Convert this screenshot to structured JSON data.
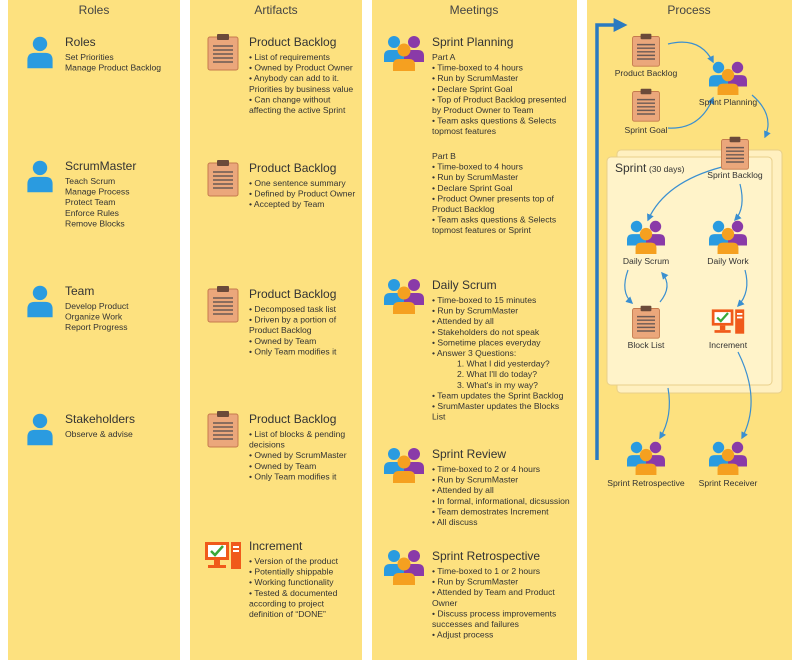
{
  "roles": {
    "heading": "Roles",
    "items": [
      {
        "title": "Roles",
        "lines": [
          "Set Priorities",
          "Manage Product Backlog"
        ]
      },
      {
        "title": "ScrumMaster",
        "lines": [
          "Teach Scrum",
          "Manage Process",
          "Protect Team",
          "Enforce Rules",
          "Remove Blocks"
        ]
      },
      {
        "title": "Team",
        "lines": [
          "Develop Product",
          "Organize Work",
          "Report Progress"
        ]
      },
      {
        "title": "Stakeholders",
        "lines": [
          "Observe & advise"
        ]
      }
    ]
  },
  "artifacts": {
    "heading": "Artifacts",
    "items": [
      {
        "title": "Product Backlog",
        "lines": [
          "• List of requirements",
          "• Owned by Product Owner",
          "• Anybody can add to it.",
          "Priorities by business value",
          "• Can change without",
          "affecting the active Sprint"
        ]
      },
      {
        "title": "Product Backlog",
        "lines": [
          "• One sentence summary",
          "• Defined by Product Owner",
          "• Accepted by Team"
        ]
      },
      {
        "title": "Product Backlog",
        "lines": [
          "• Decomposed task list",
          "• Driven by a portion of",
          "Product Backlog",
          "• Owned by Team",
          "• Only Team modifies it"
        ]
      },
      {
        "title": "Product Backlog",
        "lines": [
          "• List of blocks & pending",
          "decisions",
          "• Owned by ScrumMaster",
          "• Owned by Team",
          "• Only Team modifies it"
        ]
      },
      {
        "title": "Increment",
        "lines": [
          "• Version of the product",
          "• Potentially shippable",
          "• Working functionality",
          "• Tested & documented",
          "according to project",
          "definition of “DONE”"
        ]
      }
    ]
  },
  "meetings": {
    "heading": "Meetings",
    "items": [
      {
        "title": "Sprint Planning",
        "part_a": {
          "label": "Part A",
          "lines": [
            "• Time-boxed to 4 hours",
            "• Run by ScrumMaster",
            "• Declare Sprint Goal",
            "• Top of Product Backlog presented",
            "by Product Owner to Team",
            "• Team asks questions & Selects",
            "topmost features"
          ]
        },
        "part_b": {
          "label": "Part B",
          "lines": [
            "• Time-boxed to 4 hours",
            "• Run by ScrumMaster",
            "• Declare Sprint Goal",
            "• Product Owner presents top of",
            "Product Backlog",
            "• Team asks questions & Selects",
            "topmost features or Sprint"
          ]
        }
      },
      {
        "title": "Daily Scrum",
        "lines": [
          "• Time-boxed to 15 minutes",
          "• Run by ScrumMaster",
          "• Attended by all",
          "• Stakeholders do not speak",
          "• Sometime places everyday",
          "• Answer 3 Questions:"
        ],
        "questions": [
          "1. What I did yesterday?",
          "2. What I'll do today?",
          "3. What's in my way?"
        ],
        "more_lines": [
          "• Team updates the Sprint Backlog",
          "• SrumMaster updates the Blocks",
          "List"
        ]
      },
      {
        "title": "Sprint Review",
        "lines": [
          "• Time-boxed to 2 or 4 hours",
          "• Run by ScrumMaster",
          "• Attended by all",
          "• In formal, informational, dicsussion",
          "• Team demostrates Increment",
          "• All discuss"
        ]
      },
      {
        "title": "Sprint Retrospective",
        "lines": [
          "• Time-boxed to 1 or 2 hours",
          "• Run by ScrumMaster",
          "• Attended by Team and Product",
          "Owner",
          "• Discuss process improvements",
          "successes and failures",
          "• Adjust process"
        ]
      }
    ]
  },
  "process": {
    "heading": "Process",
    "sprint": {
      "label": "Sprint",
      "duration": "(30 days)"
    },
    "nodes": {
      "product_backlog": "Product Backlog",
      "sprint_planning": "Sprint Planning",
      "sprint_goal": "Sprint Goal",
      "sprint_backlog": "Sprint Backlog",
      "daily_scrum": "Daily Scrum",
      "daily_work": "Daily Work",
      "block_list": "Block List",
      "increment": "Increment",
      "sprint_retrospective": "Sprint Retrospective",
      "sprint_receiver": "Sprint Receiver"
    }
  }
}
